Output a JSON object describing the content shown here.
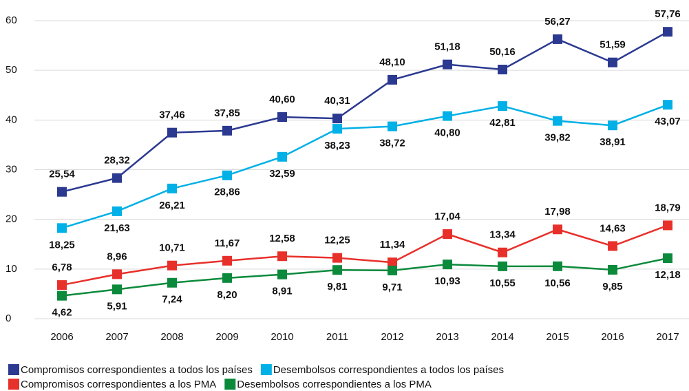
{
  "chart_data": {
    "type": "line",
    "categories": [
      "2006",
      "2007",
      "2008",
      "2009",
      "2010",
      "2011",
      "2012",
      "2013",
      "2014",
      "2015",
      "2016",
      "2017"
    ],
    "series": [
      {
        "name": "Compromisos correspondientes a todos los países",
        "color": "#2b3990",
        "values": [
          25.54,
          28.32,
          37.46,
          37.85,
          40.6,
          40.31,
          48.1,
          51.18,
          50.16,
          56.27,
          51.59,
          57.76
        ],
        "value_labels": [
          "25,54",
          "28,32",
          "37,46",
          "37,85",
          "40,60",
          "40,31",
          "48,10",
          "51,18",
          "50,16",
          "56,27",
          "51,59",
          "57,76"
        ]
      },
      {
        "name": "Desembolsos correspondientes a todos los países",
        "color": "#00b0e6",
        "values": [
          18.25,
          21.63,
          26.21,
          28.86,
          32.59,
          38.23,
          38.72,
          40.8,
          42.81,
          39.82,
          38.91,
          43.07
        ],
        "value_labels": [
          "18,25",
          "21,63",
          "26,21",
          "28,86",
          "32,59",
          "38,23",
          "38,72",
          "40,80",
          "42,81",
          "39,82",
          "38,91",
          "43,07"
        ]
      },
      {
        "name": "Compromisos correspondientes a los PMA",
        "color": "#e8302a",
        "values": [
          6.78,
          8.96,
          10.71,
          11.67,
          12.58,
          12.25,
          11.34,
          17.04,
          13.34,
          17.98,
          14.63,
          18.79
        ],
        "value_labels": [
          "6,78",
          "8,96",
          "10,71",
          "11,67",
          "12,58",
          "12,25",
          "11,34",
          "17,04",
          "13,34",
          "17,98",
          "14,63",
          "18,79"
        ]
      },
      {
        "name": "Desembolsos correspondientes a los PMA",
        "color": "#0b8a3c",
        "values": [
          4.62,
          5.91,
          7.24,
          8.2,
          8.91,
          9.81,
          9.71,
          10.93,
          10.55,
          10.56,
          9.85,
          12.18
        ],
        "value_labels": [
          "4,62",
          "5,91",
          "7,24",
          "8,20",
          "8,91",
          "9,81",
          "9,71",
          "10,93",
          "10,55",
          "10,56",
          "9,85",
          "12,18"
        ]
      }
    ],
    "ylim": [
      0,
      60
    ],
    "yticks": [
      0,
      10,
      20,
      30,
      40,
      50,
      60
    ],
    "grid": true
  }
}
